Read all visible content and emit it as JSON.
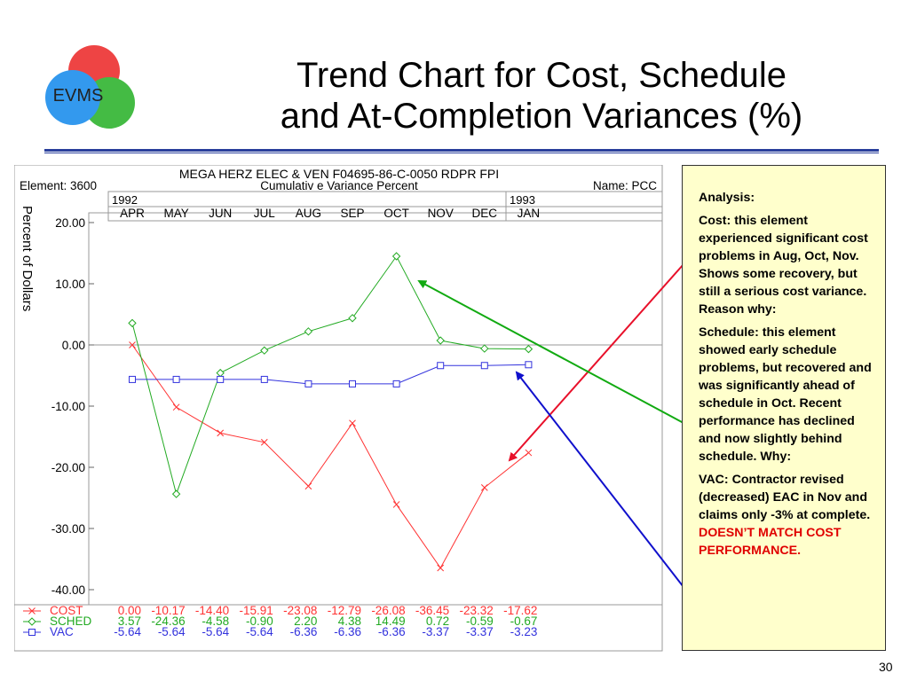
{
  "logo": {
    "text": "EVMS"
  },
  "slide": {
    "title_line1": "Trend Chart for Cost, Schedule",
    "title_line2": "and At-Completion Variances (%)",
    "page_number": "30"
  },
  "chart_header": {
    "line1": "MEGA HERZ ELEC & VEN F04695-86-C-0050 RDPR FPI",
    "element": "Element: 3600",
    "subtitle": "Cumulativ e Variance Percent",
    "name": "Name: PCC",
    "year1": "1992",
    "year2": "1993"
  },
  "chart_data": {
    "type": "line",
    "title": "Cumulativ e Variance Percent",
    "ylabel": "Percent of Dollars",
    "ylim": [
      -40,
      20
    ],
    "yticks": [
      "20.00",
      "10.00",
      "0.00",
      "-10.00",
      "-20.00",
      "-30.00",
      "-40.00"
    ],
    "categories": [
      "APR",
      "MAY",
      "JUN",
      "JUL",
      "AUG",
      "SEP",
      "OCT",
      "NOV",
      "DEC",
      "JAN"
    ],
    "series": [
      {
        "name": "COST",
        "color": "#ff3333",
        "marker": "x",
        "values": [
          0.0,
          -10.17,
          -14.4,
          -15.91,
          -23.08,
          -12.79,
          -26.08,
          -36.45,
          -23.32,
          -17.62
        ],
        "labels": [
          "0.00",
          "-10.17",
          "-14.40",
          "-15.91",
          "-23.08",
          "-12.79",
          "-26.08",
          "-36.45",
          "-23.32",
          "-17.62"
        ]
      },
      {
        "name": "SCHED",
        "color": "#22aa22",
        "marker": "diamond",
        "values": [
          3.57,
          -24.36,
          -4.58,
          -0.9,
          2.2,
          4.38,
          14.49,
          0.72,
          -0.59,
          -0.67
        ],
        "labels": [
          "3.57",
          "-24.36",
          "-4.58",
          "-0.90",
          "2.20",
          "4.38",
          "14.49",
          "0.72",
          "-0.59",
          "-0.67"
        ]
      },
      {
        "name": "VAC",
        "color": "#3333dd",
        "marker": "square",
        "values": [
          -5.64,
          -5.64,
          -5.64,
          -5.64,
          -6.36,
          -6.36,
          -6.36,
          -3.37,
          -3.37,
          -3.23
        ],
        "labels": [
          "-5.64",
          "-5.64",
          "-5.64",
          "-5.64",
          "-6.36",
          "-6.36",
          "-6.36",
          "-3.37",
          "-3.37",
          "-3.23"
        ]
      }
    ],
    "grid": false,
    "legend": "bottom table"
  },
  "analysis": {
    "heading": "Analysis:",
    "cost": "Cost:  this element experienced significant cost problems in Aug, Oct, Nov.  Shows some recovery, but still a serious cost variance.  Reason why:",
    "schedule": "Schedule:  this element showed early schedule problems, but recovered and was significantly ahead of schedule in Oct.  Recent performance has declined and now slightly behind schedule.  Why:",
    "vac": "VAC:  Contractor revised (decreased) EAC in Nov and claims only -3% at complete.",
    "warning": "DOESN’T MATCH COST PERFORMANCE."
  },
  "colors": {
    "title_rule": "#2a3f9c",
    "box_bg": "#ffffcc",
    "arrow_red": "#e8102a",
    "arrow_green": "#11aa11",
    "arrow_blue": "#1010cc"
  }
}
